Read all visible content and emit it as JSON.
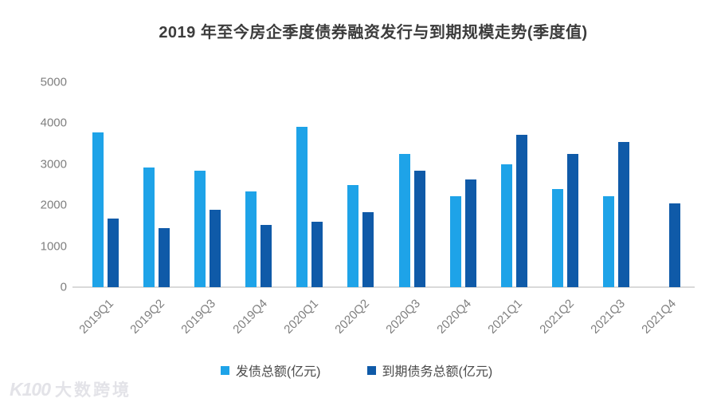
{
  "title": "2019 年至今房企季度债券融资发行与到期规模走势(季度值)",
  "legend": {
    "items": [
      {
        "label": "发债总额(亿元)",
        "color": "#1ea3e8"
      },
      {
        "label": "到期债务总额(亿元)",
        "color": "#0f5aa8"
      }
    ],
    "position": "bottom"
  },
  "watermark": {
    "logo": "K100",
    "brand": "大数跨境"
  },
  "colors": {
    "issuance": "#1ea3e8",
    "maturity": "#0f5aa8",
    "axis_line": "#d9d9d9",
    "tick_text": "#7f7f7f",
    "title_text": "#3c3c3c"
  },
  "chart_data": {
    "type": "bar",
    "title": "2019 年至今房企季度债券融资发行与到期规模走势(季度值)",
    "xlabel": "",
    "ylabel": "",
    "categories": [
      "2019Q1",
      "2019Q2",
      "2019Q3",
      "2019Q4",
      "2020Q1",
      "2020Q2",
      "2020Q3",
      "2020Q4",
      "2021Q1",
      "2021Q2",
      "2021Q3",
      "2021Q4"
    ],
    "series": [
      {
        "name": "发债总额(亿元)",
        "color": "#1ea3e8",
        "values": [
          3780,
          2920,
          2840,
          2340,
          3920,
          2490,
          3240,
          2210,
          3000,
          2400,
          2210,
          null
        ]
      },
      {
        "name": "到期债务总额(亿元)",
        "color": "#0f5aa8",
        "values": [
          1680,
          1440,
          1890,
          1520,
          1590,
          1830,
          2850,
          2630,
          3720,
          3240,
          3540,
          2050
        ]
      }
    ],
    "ylim": [
      0,
      5000
    ],
    "yticks": [
      0,
      1000,
      2000,
      3000,
      4000,
      5000
    ],
    "grid": false,
    "legend_position": "bottom"
  }
}
